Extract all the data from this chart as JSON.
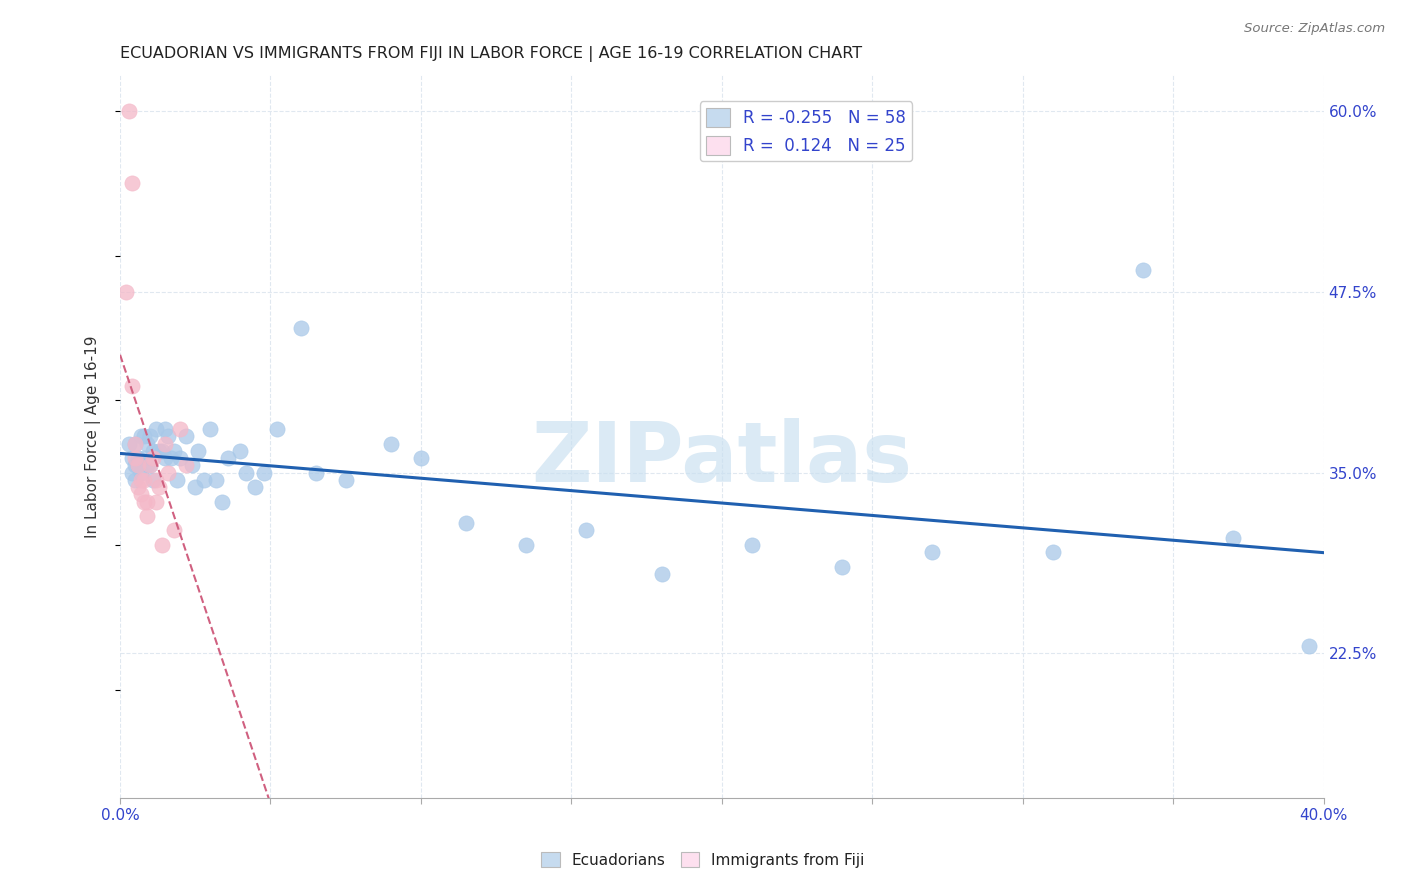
{
  "title": "ECUADORIAN VS IMMIGRANTS FROM FIJI IN LABOR FORCE | AGE 16-19 CORRELATION CHART",
  "source": "Source: ZipAtlas.com",
  "ylabel": "In Labor Force | Age 16-19",
  "xlim": [
    0.0,
    0.4
  ],
  "ylim": [
    0.125,
    0.625
  ],
  "xticks": [
    0.0,
    0.05,
    0.1,
    0.15,
    0.2,
    0.25,
    0.3,
    0.35,
    0.4
  ],
  "ytick_labels_right": [
    "22.5%",
    "35.0%",
    "47.5%",
    "60.0%"
  ],
  "yticks_right": [
    0.225,
    0.35,
    0.475,
    0.6
  ],
  "blue_color": "#a8c8e8",
  "pink_color": "#f4b8c8",
  "blue_fill": "#c6dbef",
  "pink_fill": "#fde0ef",
  "trend_blue": "#2060b0",
  "trend_pink": "#d06080",
  "R_blue": -0.255,
  "N_blue": 58,
  "R_pink": 0.124,
  "N_pink": 25,
  "blue_x": [
    0.003,
    0.004,
    0.004,
    0.005,
    0.005,
    0.005,
    0.006,
    0.006,
    0.007,
    0.007,
    0.008,
    0.008,
    0.009,
    0.009,
    0.01,
    0.01,
    0.011,
    0.011,
    0.012,
    0.013,
    0.014,
    0.015,
    0.015,
    0.016,
    0.017,
    0.018,
    0.019,
    0.02,
    0.022,
    0.024,
    0.025,
    0.026,
    0.028,
    0.03,
    0.032,
    0.034,
    0.036,
    0.04,
    0.042,
    0.045,
    0.048,
    0.052,
    0.06,
    0.065,
    0.075,
    0.09,
    0.1,
    0.115,
    0.135,
    0.155,
    0.18,
    0.21,
    0.24,
    0.27,
    0.31,
    0.34,
    0.37,
    0.395
  ],
  "blue_y": [
    0.37,
    0.36,
    0.35,
    0.37,
    0.355,
    0.345,
    0.36,
    0.355,
    0.375,
    0.35,
    0.375,
    0.36,
    0.37,
    0.355,
    0.375,
    0.355,
    0.365,
    0.345,
    0.38,
    0.365,
    0.365,
    0.38,
    0.36,
    0.375,
    0.36,
    0.365,
    0.345,
    0.36,
    0.375,
    0.355,
    0.34,
    0.365,
    0.345,
    0.38,
    0.345,
    0.33,
    0.36,
    0.365,
    0.35,
    0.34,
    0.35,
    0.38,
    0.45,
    0.35,
    0.345,
    0.37,
    0.36,
    0.315,
    0.3,
    0.31,
    0.28,
    0.3,
    0.285,
    0.295,
    0.295,
    0.49,
    0.305,
    0.23
  ],
  "pink_x": [
    0.002,
    0.003,
    0.004,
    0.004,
    0.005,
    0.005,
    0.006,
    0.006,
    0.007,
    0.007,
    0.008,
    0.008,
    0.009,
    0.009,
    0.01,
    0.011,
    0.012,
    0.012,
    0.013,
    0.014,
    0.015,
    0.016,
    0.018,
    0.02,
    0.022
  ],
  "pink_y": [
    0.475,
    0.6,
    0.55,
    0.41,
    0.37,
    0.36,
    0.355,
    0.34,
    0.345,
    0.335,
    0.345,
    0.33,
    0.33,
    0.32,
    0.355,
    0.36,
    0.345,
    0.33,
    0.34,
    0.3,
    0.37,
    0.35,
    0.31,
    0.38,
    0.355
  ],
  "watermark": "ZIPatlas",
  "watermark_color": "#c8dff0",
  "background_color": "#ffffff",
  "grid_color": "#e0e8f0"
}
